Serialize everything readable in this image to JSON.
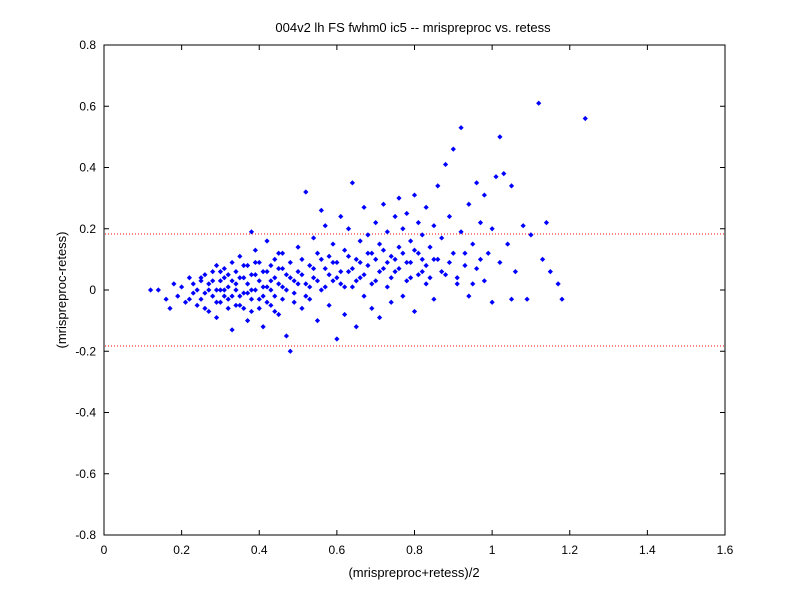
{
  "chart_data": {
    "type": "scatter",
    "title": "004v2 lh FS fwhm0 ic5 -- mrispreproc vs. retess",
    "xlabel": "(mrispreproc+retess)/2",
    "ylabel": "(mrispreproc-retess)",
    "xlim": [
      0,
      1.6
    ],
    "ylim": [
      -0.8,
      0.8
    ],
    "xticks": [
      0,
      0.2,
      0.4,
      0.6,
      0.8,
      1,
      1.2,
      1.4,
      1.6
    ],
    "yticks": [
      -0.8,
      -0.6,
      -0.4,
      -0.2,
      0,
      0.2,
      0.4,
      0.6,
      0.8
    ],
    "xtick_labels": [
      "0",
      "0.2",
      "0.4",
      "0.6",
      "0.8",
      "1",
      "1.2",
      "1.4",
      "1.6"
    ],
    "ytick_labels": [
      "-0.8",
      "-0.6",
      "-0.4",
      "-0.2",
      "0",
      "0.2",
      "0.4",
      "0.6",
      "0.8"
    ],
    "grid": false,
    "marker_color": "#0000ff",
    "reference_line_color": "#ff0000",
    "reference_lines_y": [
      0.183,
      -0.183
    ],
    "series": [
      {
        "values": [
          [
            0.12,
            0.0
          ],
          [
            0.14,
            0.0
          ],
          [
            0.16,
            -0.03
          ],
          [
            0.17,
            -0.06
          ],
          [
            0.18,
            0.02
          ],
          [
            0.19,
            -0.02
          ],
          [
            0.2,
            0.01
          ],
          [
            0.21,
            -0.04
          ],
          [
            0.22,
            0.04
          ],
          [
            0.23,
            -0.01
          ],
          [
            0.23,
            0.02
          ],
          [
            0.24,
            -0.05
          ],
          [
            0.24,
            0.0
          ],
          [
            0.25,
            0.03
          ],
          [
            0.25,
            -0.03
          ],
          [
            0.26,
            0.05
          ],
          [
            0.26,
            -0.01
          ],
          [
            0.27,
            -0.07
          ],
          [
            0.27,
            0.02
          ],
          [
            0.28,
            0.06
          ],
          [
            0.28,
            -0.02
          ],
          [
            0.29,
            0.0
          ],
          [
            0.29,
            -0.09
          ],
          [
            0.29,
            0.08
          ],
          [
            0.3,
            0.03
          ],
          [
            0.3,
            -0.04
          ],
          [
            0.31,
            0.07
          ],
          [
            0.31,
            0.0
          ],
          [
            0.32,
            -0.06
          ],
          [
            0.32,
            0.05
          ],
          [
            0.33,
            0.09
          ],
          [
            0.33,
            -0.02
          ],
          [
            0.33,
            -0.13
          ],
          [
            0.34,
            0.02
          ],
          [
            0.34,
            0.06
          ],
          [
            0.35,
            -0.05
          ],
          [
            0.35,
            0.11
          ],
          [
            0.36,
            -0.01
          ],
          [
            0.36,
            0.04
          ],
          [
            0.37,
            -0.1
          ],
          [
            0.37,
            0.08
          ],
          [
            0.38,
            0.19
          ],
          [
            0.38,
            0.0
          ],
          [
            0.38,
            -0.07
          ],
          [
            0.39,
            0.05
          ],
          [
            0.39,
            0.13
          ],
          [
            0.4,
            -0.03
          ],
          [
            0.4,
            0.09
          ],
          [
            0.41,
            0.01
          ],
          [
            0.41,
            -0.12
          ],
          [
            0.42,
            0.06
          ],
          [
            0.42,
            0.16
          ],
          [
            0.43,
            -0.05
          ],
          [
            0.43,
            0.03
          ],
          [
            0.44,
            0.1
          ],
          [
            0.44,
            -0.02
          ],
          [
            0.45,
            0.07
          ],
          [
            0.45,
            -0.08
          ],
          [
            0.46,
            0.12
          ],
          [
            0.46,
            0.01
          ],
          [
            0.47,
            -0.15
          ],
          [
            0.47,
            0.05
          ],
          [
            0.48,
            -0.2
          ],
          [
            0.48,
            0.09
          ],
          [
            0.49,
            0.03
          ],
          [
            0.49,
            -0.04
          ],
          [
            0.5,
            0.14
          ],
          [
            0.5,
            0.06
          ],
          [
            0.51,
            -0.06
          ],
          [
            0.51,
            0.1
          ],
          [
            0.52,
            0.02
          ],
          [
            0.52,
            0.32
          ],
          [
            0.53,
            0.08
          ],
          [
            0.53,
            -0.03
          ],
          [
            0.54,
            0.17
          ],
          [
            0.54,
            0.04
          ],
          [
            0.55,
            -0.1
          ],
          [
            0.55,
            0.12
          ],
          [
            0.56,
            0.26
          ],
          [
            0.56,
            0.0
          ],
          [
            0.57,
            0.07
          ],
          [
            0.57,
            0.21
          ],
          [
            0.58,
            -0.05
          ],
          [
            0.58,
            0.11
          ],
          [
            0.59,
            0.03
          ],
          [
            0.59,
            0.15
          ],
          [
            0.6,
            -0.16
          ],
          [
            0.6,
            0.09
          ],
          [
            0.61,
            0.02
          ],
          [
            0.61,
            0.24
          ],
          [
            0.62,
            0.13
          ],
          [
            0.62,
            -0.08
          ],
          [
            0.63,
            0.06
          ],
          [
            0.63,
            0.2
          ],
          [
            0.64,
            0.01
          ],
          [
            0.64,
            0.35
          ],
          [
            0.65,
            0.1
          ],
          [
            0.65,
            -0.12
          ],
          [
            0.66,
            0.16
          ],
          [
            0.66,
            0.04
          ],
          [
            0.67,
            0.27
          ],
          [
            0.67,
            -0.02
          ],
          [
            0.68,
            0.08
          ],
          [
            0.68,
            0.18
          ],
          [
            0.69,
            -0.06
          ],
          [
            0.69,
            0.12
          ],
          [
            0.7,
            0.22
          ],
          [
            0.7,
            0.03
          ],
          [
            0.71,
            0.15
          ],
          [
            0.71,
            -0.09
          ],
          [
            0.72,
            0.07
          ],
          [
            0.72,
            0.28
          ],
          [
            0.73,
            0.01
          ],
          [
            0.73,
            0.19
          ],
          [
            0.74,
            0.11
          ],
          [
            0.74,
            -0.04
          ],
          [
            0.75,
            0.24
          ],
          [
            0.75,
            0.06
          ],
          [
            0.76,
            0.3
          ],
          [
            0.76,
            0.14
          ],
          [
            0.77,
            -0.02
          ],
          [
            0.77,
            0.2
          ],
          [
            0.78,
            0.09
          ],
          [
            0.78,
            0.25
          ],
          [
            0.79,
            0.04
          ],
          [
            0.79,
            0.16
          ],
          [
            0.8,
            0.31
          ],
          [
            0.8,
            -0.07
          ],
          [
            0.81,
            0.12
          ],
          [
            0.81,
            0.22
          ],
          [
            0.82,
            0.06
          ],
          [
            0.82,
            0.18
          ],
          [
            0.83,
            0.27
          ],
          [
            0.83,
            0.02
          ],
          [
            0.84,
            0.14
          ],
          [
            0.85,
            0.21
          ],
          [
            0.85,
            -0.03
          ],
          [
            0.86,
            0.34
          ],
          [
            0.86,
            0.1
          ],
          [
            0.87,
            0.17
          ],
          [
            0.88,
            0.41
          ],
          [
            0.88,
            0.05
          ],
          [
            0.89,
            0.24
          ],
          [
            0.9,
            0.46
          ],
          [
            0.9,
            0.12
          ],
          [
            0.91,
            0.02
          ],
          [
            0.92,
            0.53
          ],
          [
            0.92,
            0.19
          ],
          [
            0.93,
            0.08
          ],
          [
            0.94,
            0.28
          ],
          [
            0.94,
            -0.02
          ],
          [
            0.95,
            0.15
          ],
          [
            0.96,
            0.35
          ],
          [
            0.96,
            0.07
          ],
          [
            0.97,
            0.22
          ],
          [
            0.98,
            0.03
          ],
          [
            0.98,
            0.31
          ],
          [
            0.99,
            0.12
          ],
          [
            1.0,
            0.2
          ],
          [
            1.0,
            -0.04
          ],
          [
            1.01,
            0.37
          ],
          [
            1.02,
            0.5
          ],
          [
            1.02,
            0.09
          ],
          [
            1.03,
            0.38
          ],
          [
            1.04,
            0.15
          ],
          [
            1.05,
            0.34
          ],
          [
            1.05,
            -0.03
          ],
          [
            1.06,
            0.06
          ],
          [
            1.08,
            0.21
          ],
          [
            1.09,
            -0.03
          ],
          [
            1.1,
            0.18
          ],
          [
            1.12,
            0.61
          ],
          [
            1.13,
            0.1
          ],
          [
            1.14,
            0.22
          ],
          [
            1.15,
            0.06
          ],
          [
            1.17,
            0.02
          ],
          [
            1.18,
            -0.03
          ],
          [
            1.24,
            0.56
          ],
          [
            0.22,
            -0.03
          ],
          [
            0.25,
            0.04
          ],
          [
            0.26,
            -0.06
          ],
          [
            0.27,
            0.0
          ],
          [
            0.28,
            0.03
          ],
          [
            0.29,
            -0.04
          ],
          [
            0.3,
            0.0
          ],
          [
            0.3,
            0.06
          ],
          [
            0.31,
            -0.02
          ],
          [
            0.31,
            0.04
          ],
          [
            0.32,
            0.01
          ],
          [
            0.32,
            -0.03
          ],
          [
            0.33,
            0.03
          ],
          [
            0.34,
            -0.05
          ],
          [
            0.34,
            0.0
          ],
          [
            0.35,
            0.04
          ],
          [
            0.35,
            -0.02
          ],
          [
            0.36,
            0.08
          ],
          [
            0.36,
            -0.06
          ],
          [
            0.37,
            0.02
          ],
          [
            0.37,
            -0.01
          ],
          [
            0.38,
            0.05
          ],
          [
            0.38,
            -0.03
          ],
          [
            0.39,
            0.0
          ],
          [
            0.39,
            0.09
          ],
          [
            0.4,
            0.03
          ],
          [
            0.4,
            -0.06
          ],
          [
            0.41,
            0.06
          ],
          [
            0.41,
            -0.02
          ],
          [
            0.42,
            0.01
          ],
          [
            0.42,
            -0.04
          ],
          [
            0.43,
            0.08
          ],
          [
            0.43,
            0.0
          ],
          [
            0.44,
            0.04
          ],
          [
            0.44,
            -0.07
          ],
          [
            0.45,
            0.02
          ],
          [
            0.45,
            0.12
          ],
          [
            0.46,
            -0.03
          ],
          [
            0.46,
            0.07
          ],
          [
            0.47,
            0.0
          ],
          [
            0.48,
            0.04
          ],
          [
            0.49,
            -0.01
          ],
          [
            0.5,
            0.02
          ],
          [
            0.51,
            0.05
          ],
          [
            0.52,
            -0.02
          ],
          [
            0.53,
            0.01
          ],
          [
            0.54,
            0.07
          ],
          [
            0.55,
            0.03
          ],
          [
            0.56,
            0.1
          ],
          [
            0.57,
            0.01
          ],
          [
            0.58,
            0.05
          ],
          [
            0.59,
            0.09
          ],
          [
            0.6,
            0.04
          ],
          [
            0.61,
            0.06
          ],
          [
            0.62,
            0.01
          ],
          [
            0.63,
            0.11
          ],
          [
            0.64,
            0.07
          ],
          [
            0.65,
            0.03
          ],
          [
            0.66,
            0.09
          ],
          [
            0.67,
            0.05
          ],
          [
            0.68,
            0.12
          ],
          [
            0.69,
            0.02
          ],
          [
            0.7,
            0.1
          ],
          [
            0.71,
            0.06
          ],
          [
            0.72,
            0.13
          ],
          [
            0.73,
            0.09
          ],
          [
            0.74,
            0.04
          ],
          [
            0.75,
            0.1
          ],
          [
            0.76,
            0.07
          ],
          [
            0.77,
            0.12
          ],
          [
            0.78,
            0.03
          ],
          [
            0.79,
            0.09
          ],
          [
            0.8,
            0.13
          ],
          [
            0.81,
            0.05
          ],
          [
            0.82,
            0.1
          ],
          [
            0.83,
            0.08
          ],
          [
            0.84,
            0.04
          ],
          [
            0.85,
            0.1
          ],
          [
            0.87,
            0.06
          ],
          [
            0.89,
            0.09
          ],
          [
            0.91,
            0.04
          ],
          [
            0.93,
            0.12
          ],
          [
            0.95,
            0.02
          ],
          [
            0.97,
            0.1
          ]
        ]
      }
    ]
  }
}
